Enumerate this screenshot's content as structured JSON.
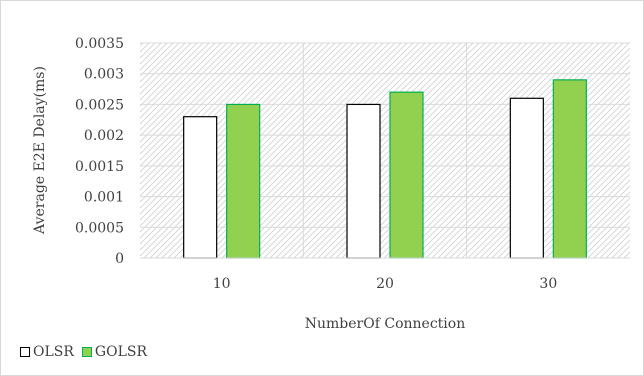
{
  "chart_data": {
    "type": "bar",
    "title": "",
    "xlabel": "NumberOf Connection",
    "ylabel": "Average E2E Delay(ms)",
    "categories": [
      "10",
      "20",
      "30"
    ],
    "ylim": [
      0,
      0.0035
    ],
    "yticks": [
      "0",
      "0.0005",
      "0.001",
      "0.0015",
      "0.002",
      "0.0025",
      "0.003",
      "0.0035"
    ],
    "series": [
      {
        "name": "OLSR",
        "values": [
          0.0023,
          0.0025,
          0.0026
        ],
        "fill": "#ffffff",
        "stroke": "#000000"
      },
      {
        "name": "GOLSR",
        "values": [
          0.0025,
          0.0027,
          0.0029
        ],
        "fill": "#92d050",
        "stroke": "#00b050"
      }
    ],
    "grid": true,
    "legend_position": "bottom-left"
  }
}
